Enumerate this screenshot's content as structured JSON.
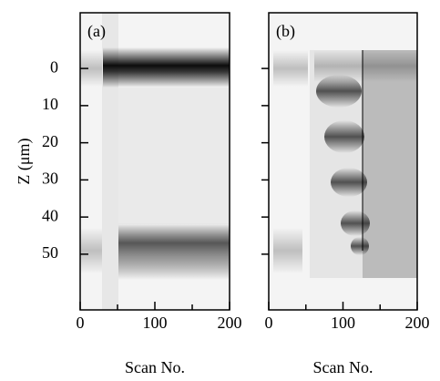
{
  "chart_data": [
    {
      "type": "image",
      "title": "(a)",
      "xlabel": "Scan No.",
      "ylabel": "Z (μm)",
      "xlim": [
        0,
        200
      ],
      "xticks": [
        0,
        100,
        200
      ],
      "xminor": [
        50,
        150
      ],
      "ylim": [
        -15,
        65
      ],
      "y_inverted": true,
      "yticks": [
        0,
        10,
        20,
        30,
        40,
        50
      ],
      "ytick_labels": true
    },
    {
      "type": "image",
      "title": "(b)",
      "xlabel": "Scan No.",
      "xlim": [
        0,
        200
      ],
      "xticks": [
        0,
        100,
        200
      ],
      "xminor": [
        50,
        150
      ],
      "ylim": [
        -15,
        65
      ],
      "y_inverted": true,
      "yticks": [
        0,
        10,
        20,
        30,
        40,
        50
      ],
      "ytick_labels": false
    }
  ]
}
